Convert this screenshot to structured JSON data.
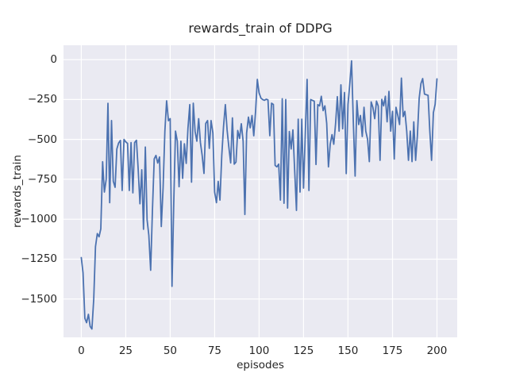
{
  "chart_data": {
    "type": "line",
    "title": "rewards_train of DDPG",
    "xlabel": "episodes",
    "ylabel": "rewards_train",
    "legend_position": "none",
    "grid": true,
    "grid_color": "#FFFFFF",
    "plot_bg": "#EAEAF2",
    "fig_bg": "#FFFFFF",
    "text_color": "#262626",
    "xlim": [
      -10,
      211.4
    ],
    "ylim": [
      -1740,
      90
    ],
    "xticks": [
      0,
      25,
      50,
      75,
      100,
      125,
      150,
      175,
      200
    ],
    "xtick_labels": [
      "0",
      "25",
      "50",
      "75",
      "100",
      "125",
      "150",
      "175",
      "200"
    ],
    "yticks": [
      0,
      -250,
      -500,
      -750,
      -1000,
      -1250,
      -1500
    ],
    "ytick_labels": [
      "0",
      "−250",
      "−500",
      "−750",
      "−1000",
      "−1250",
      "−1500"
    ],
    "series": [
      {
        "name": "rewards_train",
        "color": "#4C72B0",
        "line_width": 1.8,
        "x_start": 0,
        "x_step": 1,
        "values": [
          -1240,
          -1335,
          -1620,
          -1648,
          -1596,
          -1672,
          -1688,
          -1500,
          -1172,
          -1090,
          -1110,
          -1060,
          -640,
          -830,
          -750,
          -274,
          -896,
          -382,
          -762,
          -800,
          -560,
          -523,
          -506,
          -820,
          -500,
          -515,
          -525,
          -820,
          -520,
          -835,
          -520,
          -505,
          -688,
          -903,
          -690,
          -1063,
          -548,
          -1003,
          -1100,
          -1320,
          -950,
          -622,
          -600,
          -648,
          -610,
          -1046,
          -800,
          -450,
          -258,
          -383,
          -370,
          -1420,
          -900,
          -448,
          -511,
          -796,
          -511,
          -744,
          -527,
          -650,
          -430,
          -282,
          -768,
          -273,
          -450,
          -511,
          -370,
          -520,
          -600,
          -713,
          -400,
          -382,
          -556,
          -382,
          -460,
          -830,
          -896,
          -763,
          -880,
          -600,
          -420,
          -282,
          -440,
          -547,
          -647,
          -365,
          -655,
          -642,
          -444,
          -494,
          -402,
          -511,
          -970,
          -460,
          -360,
          -427,
          -350,
          -477,
          -323,
          -124,
          -208,
          -241,
          -250,
          -255,
          -248,
          -252,
          -477,
          -273,
          -281,
          -663,
          -672,
          -655,
          -880,
          -245,
          -900,
          -250,
          -930,
          -450,
          -560,
          -440,
          -690,
          -945,
          -373,
          -830,
          -373,
          -805,
          -450,
          -124,
          -820,
          -250,
          -255,
          -260,
          -657,
          -282,
          -290,
          -230,
          -320,
          -290,
          -400,
          -672,
          -530,
          -470,
          -530,
          -400,
          -232,
          -448,
          -158,
          -433,
          -206,
          -714,
          -282,
          -150,
          -8,
          -400,
          -730,
          -257,
          -407,
          -350,
          -482,
          -299,
          -448,
          -500,
          -639,
          -265,
          -300,
          -370,
          -260,
          -290,
          -631,
          -249,
          -290,
          -230,
          -390,
          -199,
          -448,
          -324,
          -623,
          -299,
          -350,
          -407,
          -116,
          -357,
          -324,
          -448,
          -631,
          -448,
          -639,
          -390,
          -631,
          -480,
          -241,
          -150,
          -119,
          -216,
          -220,
          -224,
          -448,
          -631,
          -332,
          -280,
          -121
        ]
      }
    ]
  }
}
